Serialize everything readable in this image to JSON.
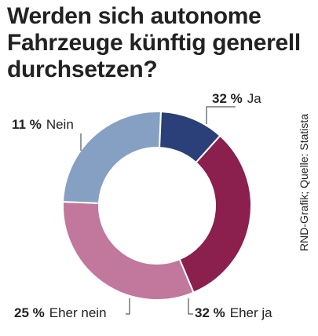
{
  "chart_data": {
    "type": "pie",
    "title_lines": [
      "Werden sich autonome",
      "Fahrzeuge künftig generell",
      "durchsetzen?"
    ],
    "slices": [
      {
        "label": "Ja",
        "pct_text": "32 %",
        "value": 32,
        "color": "#8b1f4e"
      },
      {
        "label": "Eher ja",
        "pct_text": "32 %",
        "value": 32,
        "color": "#c2779c"
      },
      {
        "label": "Eher nein",
        "pct_text": "25 %",
        "value": 25,
        "color": "#86a0c4"
      },
      {
        "label": "Nein",
        "pct_text": "11 %",
        "value": 11,
        "color": "#2b3f78"
      }
    ],
    "source": "RND-Grafik; Quelle: Statista"
  }
}
